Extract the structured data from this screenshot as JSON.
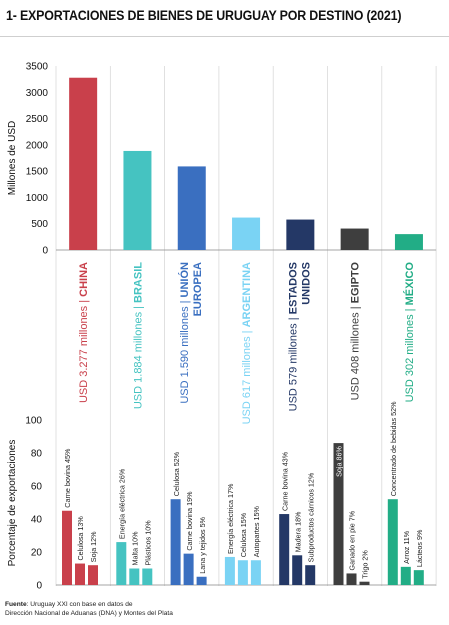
{
  "title": "1- EXPORTACIONES DE BIENES DE URUGUAY POR DESTINO (2021)",
  "source": {
    "label": "Fuente",
    "line1": ": Uruguay XXI con base en datos de",
    "line2": "Dirección Nacional de Aduanas (DNA) y Montes del Plata"
  },
  "chart_data": [
    {
      "type": "bar",
      "ylabel": "Millones de USD",
      "ylim": [
        0,
        3500
      ],
      "yticks": [
        0,
        500,
        1000,
        1500,
        2000,
        2500,
        3000,
        3500
      ],
      "grid": false,
      "categories": [
        "CHINA",
        "BRASIL",
        "UNIÓN EUROPEA",
        "ARGENTINA",
        "ESTADOS UNIDOS",
        "EGIPTO",
        "MÉXICO"
      ],
      "values": [
        3277,
        1884,
        1590,
        617,
        579,
        408,
        302
      ],
      "colors": [
        "#c9404b",
        "#45c3c1",
        "#3a6fc0",
        "#7ad3f4",
        "#243866",
        "#3e3e3e",
        "#22ad86"
      ],
      "category_labels": [
        {
          "amount": "USD 3.277 millones",
          "name": "CHINA"
        },
        {
          "amount": "USD 1.884 millones",
          "name": "BRASIL"
        },
        {
          "amount": "USD 1.590 millones",
          "name": "UNIÓN EUROPEA"
        },
        {
          "amount": "USD 617 millones",
          "name": "ARGENTINA"
        },
        {
          "amount": "USD 579 millones",
          "name": "ESTADOS UNIDOS"
        },
        {
          "amount": "USD 408 millones",
          "name": "EGIPTO"
        },
        {
          "amount": "USD 302 millones",
          "name": "MÉXICO"
        }
      ]
    },
    {
      "type": "bar",
      "ylabel": "Porcentaje de exportaciones",
      "ylim": [
        0,
        100
      ],
      "yticks": [
        0,
        20,
        40,
        60,
        80,
        100
      ],
      "grid": false,
      "groups": [
        {
          "destination": "CHINA",
          "items": [
            {
              "product": "Carne bovina",
              "value": 45
            },
            {
              "product": "Celulosa",
              "value": 13
            },
            {
              "product": "Soja",
              "value": 12
            }
          ]
        },
        {
          "destination": "BRASIL",
          "items": [
            {
              "product": "Energía eléctrica",
              "value": 26
            },
            {
              "product": "Malta",
              "value": 10
            },
            {
              "product": "Plásticos",
              "value": 10
            }
          ]
        },
        {
          "destination": "UNIÓN EUROPEA",
          "items": [
            {
              "product": "Celulosa",
              "value": 52
            },
            {
              "product": "Carne bovina",
              "value": 19
            },
            {
              "product": "Lana y tejidos",
              "value": 5
            }
          ]
        },
        {
          "destination": "ARGENTINA",
          "items": [
            {
              "product": "Energía eléctrica",
              "value": 17
            },
            {
              "product": "Celulosa",
              "value": 15
            },
            {
              "product": "Autopartes",
              "value": 15
            }
          ]
        },
        {
          "destination": "ESTADOS UNIDOS",
          "items": [
            {
              "product": "Carne bovina",
              "value": 43
            },
            {
              "product": "Madera",
              "value": 18
            },
            {
              "product": "Subproductos cárnicos",
              "value": 12
            }
          ]
        },
        {
          "destination": "EGIPTO",
          "items": [
            {
              "product": "Soja",
              "value": 86
            },
            {
              "product": "Ganado en pie",
              "value": 7
            },
            {
              "product": "Trigo",
              "value": 2
            }
          ]
        },
        {
          "destination": "MÉXICO",
          "items": [
            {
              "product": "Concentrado de bebidas",
              "value": 52
            },
            {
              "product": "Arroz",
              "value": 11
            },
            {
              "product": "Lácteos",
              "value": 9
            }
          ]
        }
      ]
    }
  ]
}
